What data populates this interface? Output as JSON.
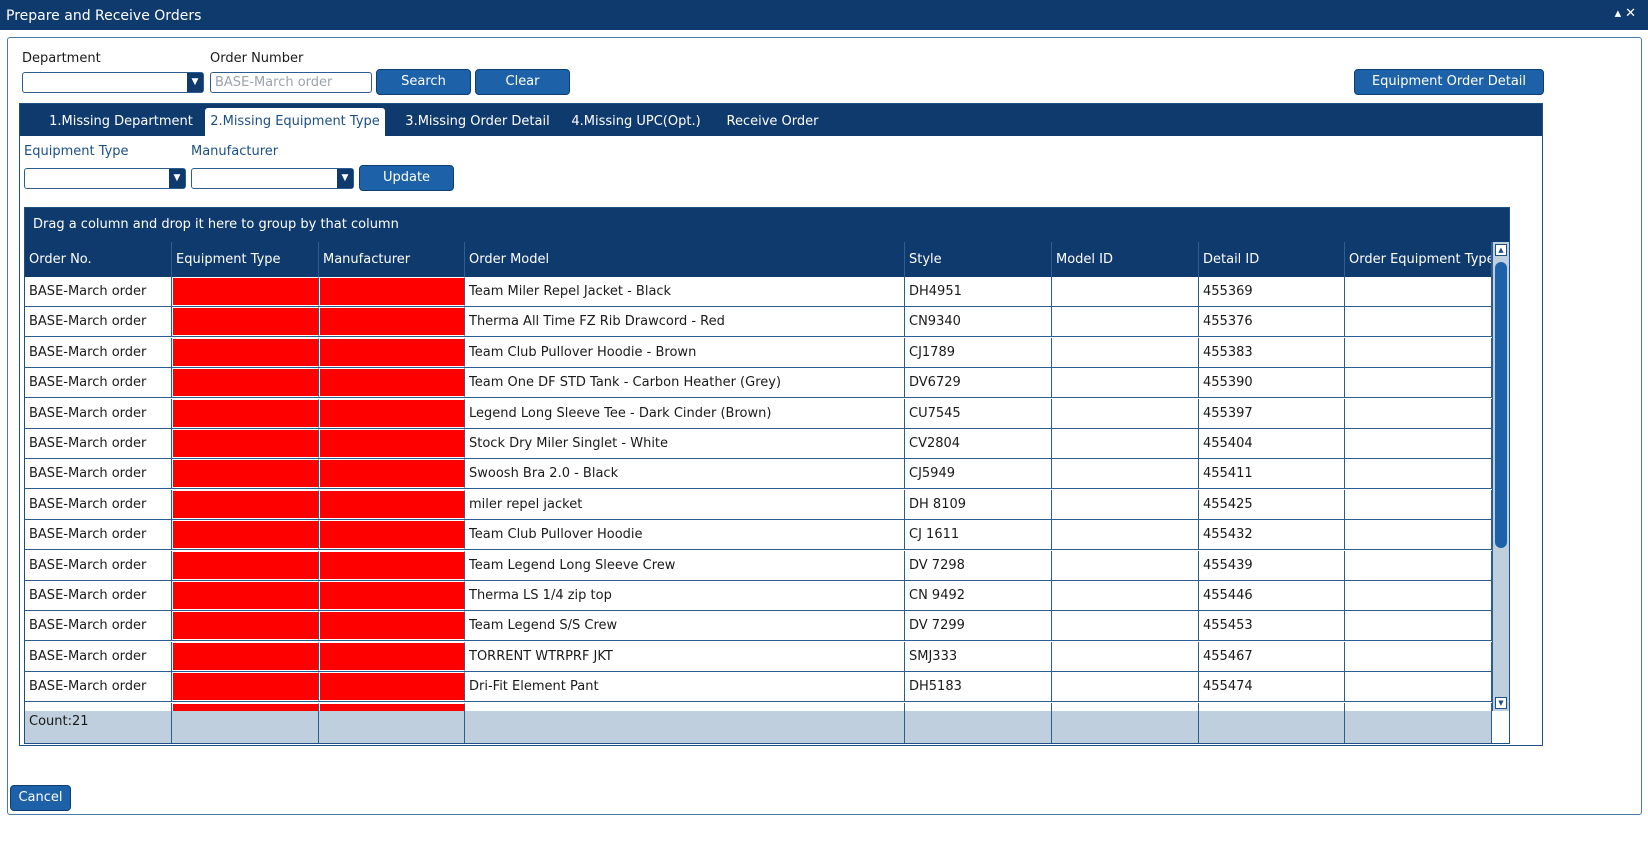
{
  "window": {
    "title": "Prepare and Receive Orders",
    "controls": "▴ ✕"
  },
  "search": {
    "department_label": "Department",
    "department_value": "",
    "order_number_label": "Order Number",
    "order_number_placeholder": "BASE-March order",
    "search_button": "Search",
    "clear_button": "Clear",
    "equipment_order_detail_button": "Equipment Order Detail"
  },
  "tabs": [
    {
      "label": "1.Missing Department",
      "active": false
    },
    {
      "label": "2.Missing Equipment Type",
      "active": true
    },
    {
      "label": "3.Missing Order Detail",
      "active": false
    },
    {
      "label": "4.Missing UPC(Opt.)",
      "active": false
    },
    {
      "label": "Receive Order",
      "active": false
    }
  ],
  "filters": {
    "equipment_type_label": "Equipment Type",
    "equipment_type_value": "",
    "manufacturer_label": "Manufacturer",
    "manufacturer_value": "",
    "update_button": "Update"
  },
  "grid": {
    "group_hint": "Drag a column and drop it here to group by that column",
    "columns": [
      "Order No.",
      "Equipment Type",
      "Manufacturer",
      "Order Model",
      "Style",
      "Model ID",
      "Detail ID",
      "Order Equipment Type"
    ],
    "rows": [
      {
        "order_no": "BASE-March order",
        "equipment_type": "",
        "manufacturer": "",
        "order_model": "Team Miler Repel Jacket - Black",
        "style": "DH4951",
        "model_id": "",
        "detail_id": "455369",
        "order_equipment_type": ""
      },
      {
        "order_no": "BASE-March order",
        "equipment_type": "",
        "manufacturer": "",
        "order_model": "Therma All Time FZ Rib Drawcord - Red",
        "style": "CN9340",
        "model_id": "",
        "detail_id": "455376",
        "order_equipment_type": ""
      },
      {
        "order_no": "BASE-March order",
        "equipment_type": "",
        "manufacturer": "",
        "order_model": "Team Club Pullover Hoodie - Brown",
        "style": "CJ1789",
        "model_id": "",
        "detail_id": "455383",
        "order_equipment_type": ""
      },
      {
        "order_no": "BASE-March order",
        "equipment_type": "",
        "manufacturer": "",
        "order_model": "Team One DF STD Tank - Carbon Heather (Grey)",
        "style": "DV6729",
        "model_id": "",
        "detail_id": "455390",
        "order_equipment_type": ""
      },
      {
        "order_no": "BASE-March order",
        "equipment_type": "",
        "manufacturer": "",
        "order_model": "Legend Long Sleeve Tee - Dark Cinder (Brown)",
        "style": "CU7545",
        "model_id": "",
        "detail_id": "455397",
        "order_equipment_type": ""
      },
      {
        "order_no": "BASE-March order",
        "equipment_type": "",
        "manufacturer": "",
        "order_model": "Stock Dry Miler Singlet - White",
        "style": "CV2804",
        "model_id": "",
        "detail_id": "455404",
        "order_equipment_type": ""
      },
      {
        "order_no": "BASE-March order",
        "equipment_type": "",
        "manufacturer": "",
        "order_model": "Swoosh Bra 2.0 - Black",
        "style": "CJ5949",
        "model_id": "",
        "detail_id": "455411",
        "order_equipment_type": ""
      },
      {
        "order_no": "BASE-March order",
        "equipment_type": "",
        "manufacturer": "",
        "order_model": "miler repel jacket",
        "style": "DH 8109",
        "model_id": "",
        "detail_id": "455425",
        "order_equipment_type": ""
      },
      {
        "order_no": "BASE-March order",
        "equipment_type": "",
        "manufacturer": "",
        "order_model": "Team Club Pullover Hoodie",
        "style": "CJ 1611",
        "model_id": "",
        "detail_id": "455432",
        "order_equipment_type": ""
      },
      {
        "order_no": "BASE-March order",
        "equipment_type": "",
        "manufacturer": "",
        "order_model": "Team Legend Long Sleeve Crew",
        "style": "DV 7298",
        "model_id": "",
        "detail_id": "455439",
        "order_equipment_type": ""
      },
      {
        "order_no": "BASE-March order",
        "equipment_type": "",
        "manufacturer": "",
        "order_model": "Therma LS 1/4 zip top",
        "style": "CN 9492",
        "model_id": "",
        "detail_id": "455446",
        "order_equipment_type": ""
      },
      {
        "order_no": "BASE-March order",
        "equipment_type": "",
        "manufacturer": "",
        "order_model": "Team Legend S/S Crew",
        "style": "DV 7299",
        "model_id": "",
        "detail_id": "455453",
        "order_equipment_type": ""
      },
      {
        "order_no": "BASE-March order",
        "equipment_type": "",
        "manufacturer": "",
        "order_model": "TORRENT WTRPRF JKT",
        "style": "SMJ333",
        "model_id": "",
        "detail_id": "455467",
        "order_equipment_type": ""
      },
      {
        "order_no": "BASE-March order",
        "equipment_type": "",
        "manufacturer": "",
        "order_model": "Dri-Fit Element Pant",
        "style": "DH5183",
        "model_id": "",
        "detail_id": "455474",
        "order_equipment_type": ""
      }
    ],
    "count_label": "Count:21",
    "missing_value_color": "#ff0000"
  },
  "footer": {
    "cancel_button": "Cancel"
  },
  "icons": {
    "dropdown": "caret-down-icon",
    "scroll_up": "scroll-up-icon",
    "scroll_down": "scroll-down-icon",
    "minimize": "collapse-icon",
    "close": "close-icon"
  },
  "colors": {
    "header_bg": "#0f3a6d",
    "button_bg": "#1d62a8",
    "footer_bg": "#c0cfdd"
  }
}
